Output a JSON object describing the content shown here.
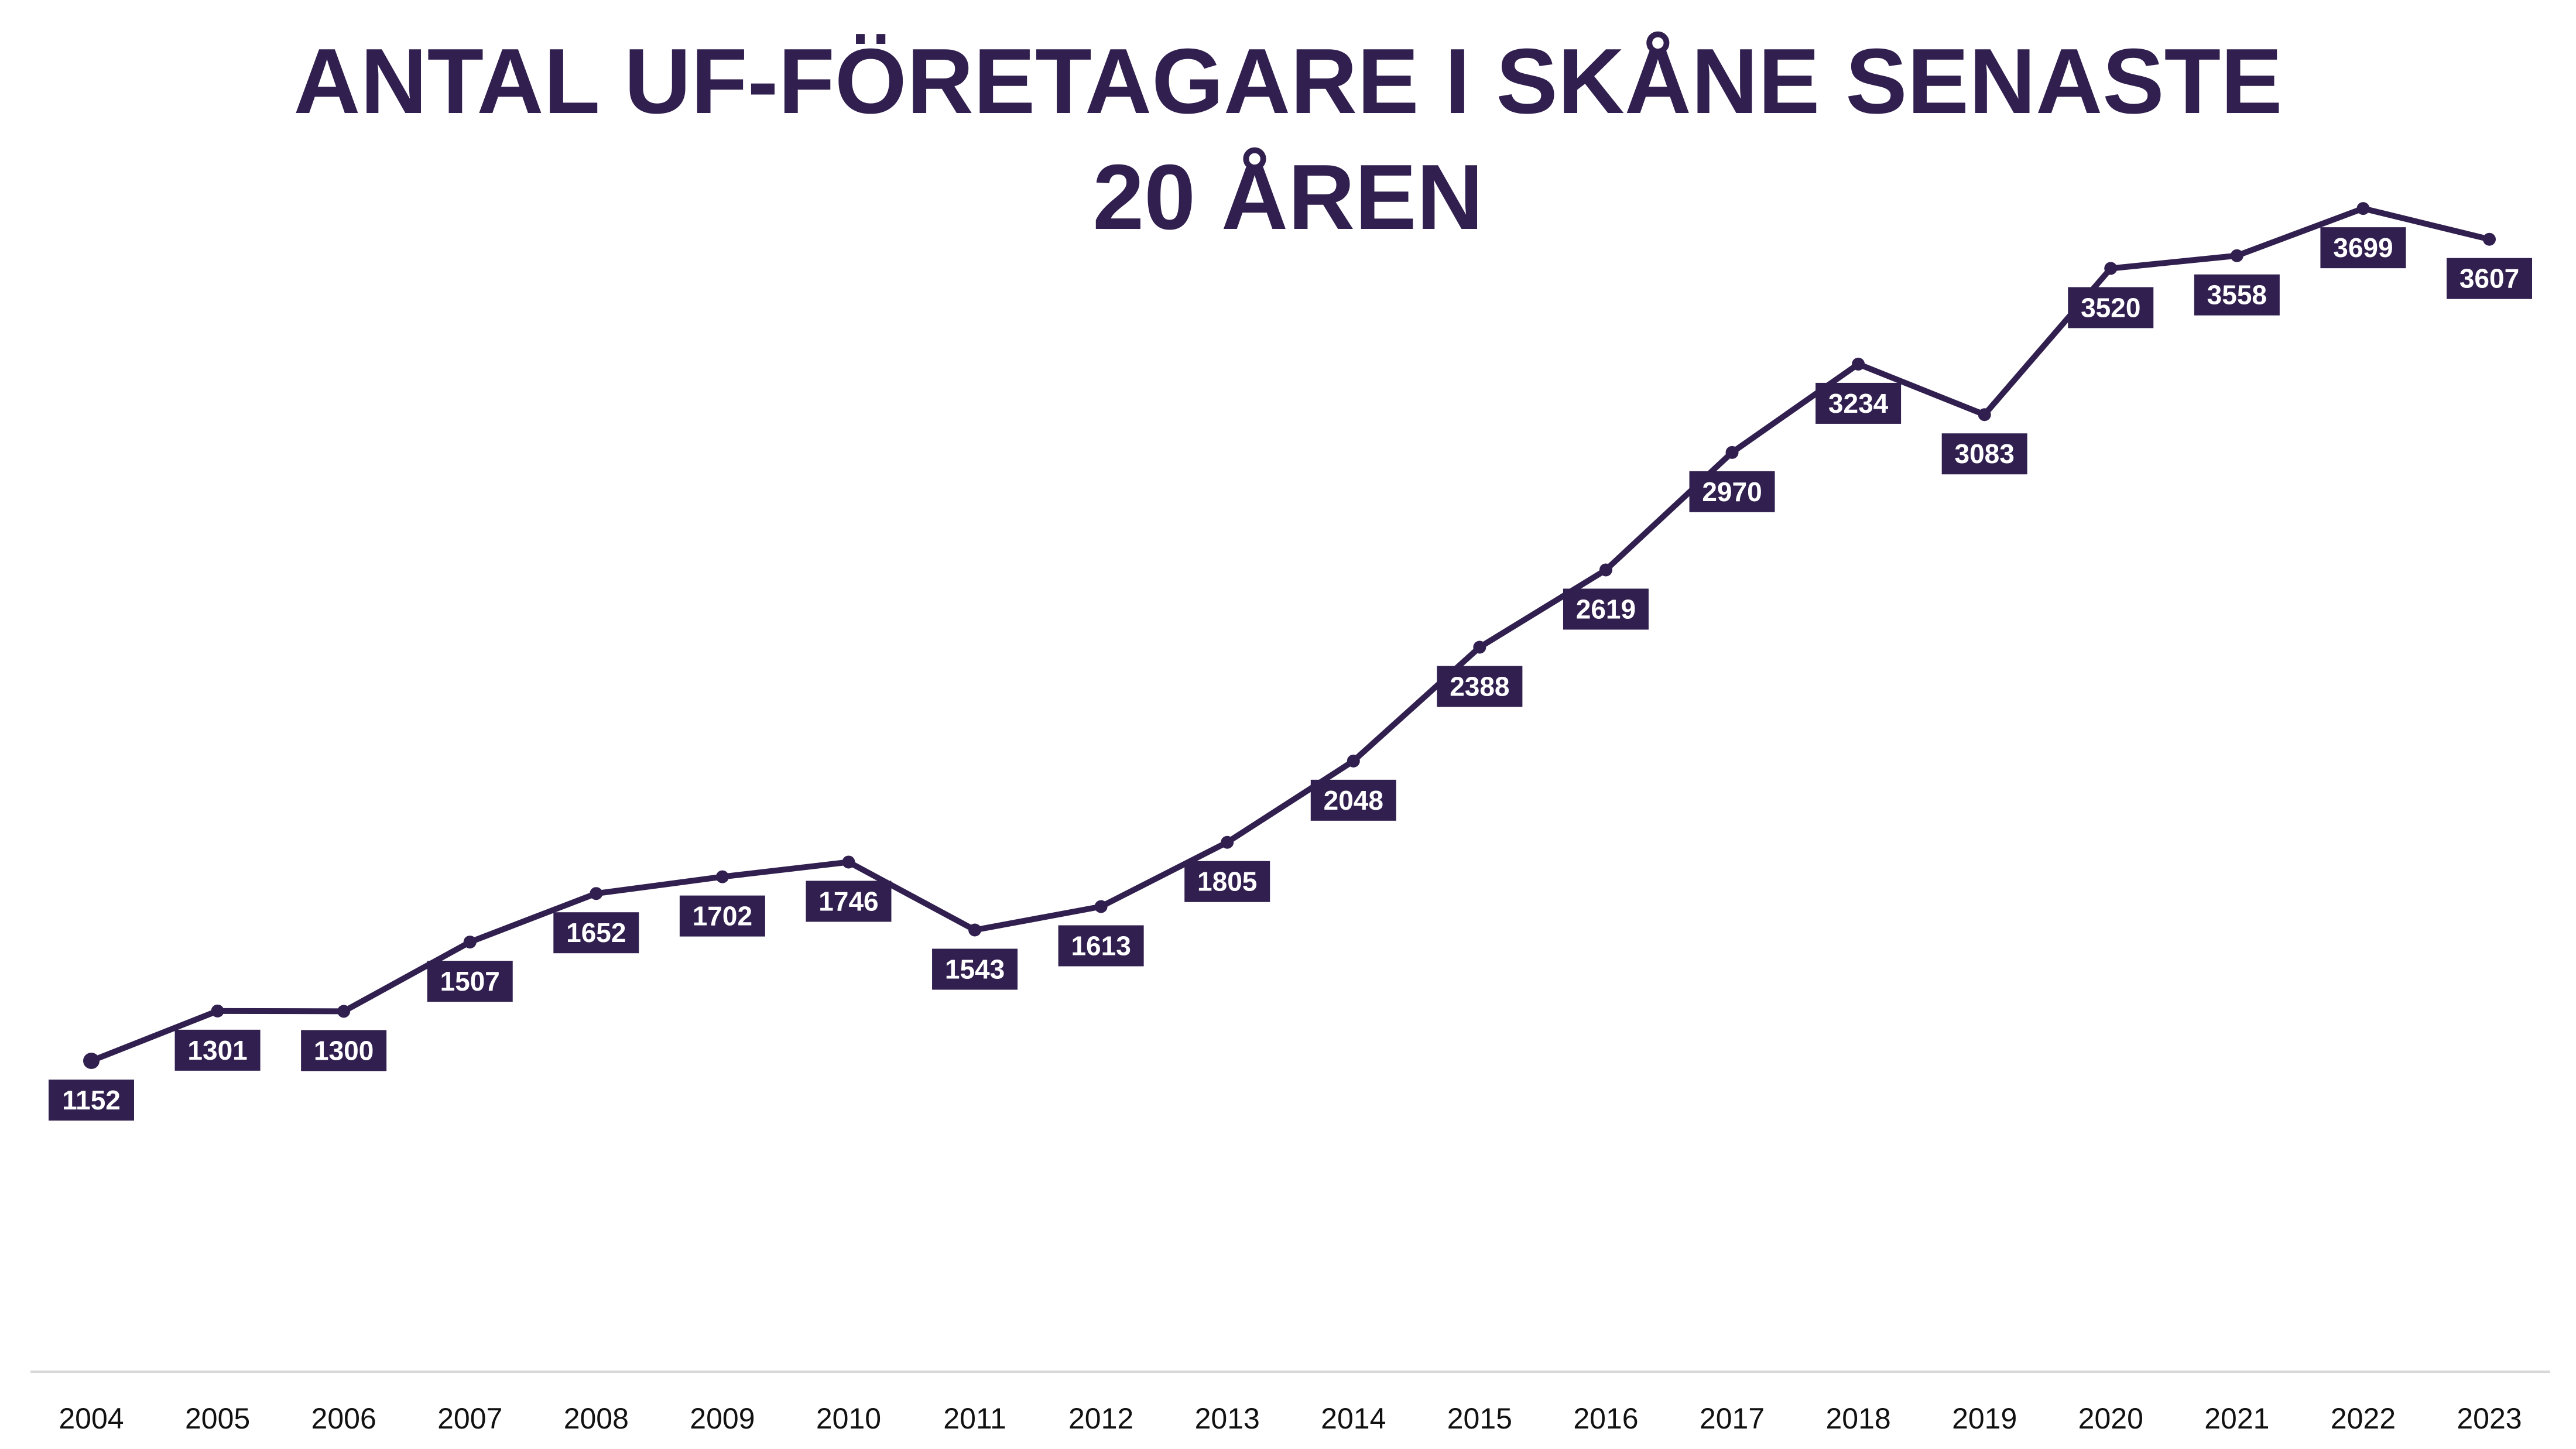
{
  "colors": {
    "accent": "#31204f",
    "drop_line": "#8a8098",
    "axis_line": "#d8d8d8",
    "label_text": "#ffffff",
    "tick_text": "#111111"
  },
  "chart_data": {
    "type": "line",
    "title_lines": [
      "ANTAL UF-FÖRETAGARE I SKÅNE SENASTE",
      "20 ÅREN"
    ],
    "xlabel": "",
    "ylabel": "",
    "x": [
      "2004",
      "2005",
      "2006",
      "2007",
      "2008",
      "2009",
      "2010",
      "2011",
      "2012",
      "2013",
      "2014",
      "2015",
      "2016",
      "2017",
      "2018",
      "2019",
      "2020",
      "2021",
      "2022",
      "2023"
    ],
    "series": [
      {
        "values": [
          1152,
          1301,
          1300,
          1507,
          1652,
          1702,
          1746,
          1543,
          1613,
          1805,
          2048,
          2388,
          2619,
          2970,
          3234,
          3083,
          3520,
          3558,
          3699,
          3607
        ]
      }
    ],
    "grid": false,
    "legend": "none",
    "data_labels": true,
    "y_axis_visible": false
  }
}
